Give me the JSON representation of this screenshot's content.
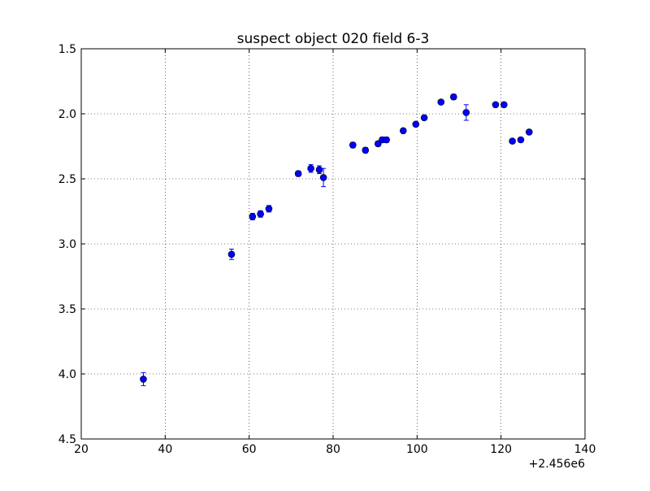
{
  "chart_data": {
    "type": "scatter",
    "title": "suspect object 020 field 6-3",
    "xlabel": "",
    "ylabel": "",
    "x_offset_label": "+2.456e6",
    "xlim": [
      20,
      140
    ],
    "ylim": [
      4.5,
      1.5
    ],
    "y_inverted": true,
    "grid": true,
    "x_ticks": [
      "20",
      "40",
      "60",
      "80",
      "100",
      "120",
      "140"
    ],
    "y_ticks": [
      "1.5",
      "2.0",
      "2.5",
      "3.0",
      "3.5",
      "4.0",
      "4.5"
    ],
    "x_tick_values": [
      20,
      40,
      60,
      80,
      100,
      120,
      140
    ],
    "y_tick_values": [
      1.5,
      2.0,
      2.5,
      3.0,
      3.5,
      4.0,
      4.5
    ],
    "marker_color": "#0000ff",
    "marker_edge_color": "#000000",
    "errorbar_color": "#0000ff",
    "points": [
      {
        "x": 34.8,
        "y": 4.04,
        "err": 0.05
      },
      {
        "x": 55.8,
        "y": 3.08,
        "err": 0.04
      },
      {
        "x": 60.8,
        "y": 2.79,
        "err": 0.025
      },
      {
        "x": 62.7,
        "y": 2.77,
        "err": 0.025
      },
      {
        "x": 64.7,
        "y": 2.73,
        "err": 0.025
      },
      {
        "x": 71.7,
        "y": 2.46,
        "err": 0.02
      },
      {
        "x": 74.7,
        "y": 2.42,
        "err": 0.03
      },
      {
        "x": 76.7,
        "y": 2.43,
        "err": 0.03
      },
      {
        "x": 77.7,
        "y": 2.49,
        "err": 0.07
      },
      {
        "x": 84.7,
        "y": 2.24,
        "err": 0.02
      },
      {
        "x": 87.7,
        "y": 2.28,
        "err": 0.02
      },
      {
        "x": 90.7,
        "y": 2.23,
        "err": 0.02
      },
      {
        "x": 91.7,
        "y": 2.2,
        "err": 0.02
      },
      {
        "x": 92.7,
        "y": 2.2,
        "err": 0.02
      },
      {
        "x": 96.7,
        "y": 2.13,
        "err": 0.015
      },
      {
        "x": 99.7,
        "y": 2.08,
        "err": 0.015
      },
      {
        "x": 101.7,
        "y": 2.03,
        "err": 0.015
      },
      {
        "x": 105.7,
        "y": 1.91,
        "err": 0.015
      },
      {
        "x": 108.7,
        "y": 1.87,
        "err": 0.02
      },
      {
        "x": 111.7,
        "y": 1.99,
        "err": 0.06
      },
      {
        "x": 118.7,
        "y": 1.93,
        "err": 0.015
      },
      {
        "x": 120.7,
        "y": 1.93,
        "err": 0.015
      },
      {
        "x": 122.7,
        "y": 2.21,
        "err": 0.015
      },
      {
        "x": 124.7,
        "y": 2.2,
        "err": 0.015
      },
      {
        "x": 126.7,
        "y": 2.14,
        "err": 0.015
      }
    ]
  }
}
